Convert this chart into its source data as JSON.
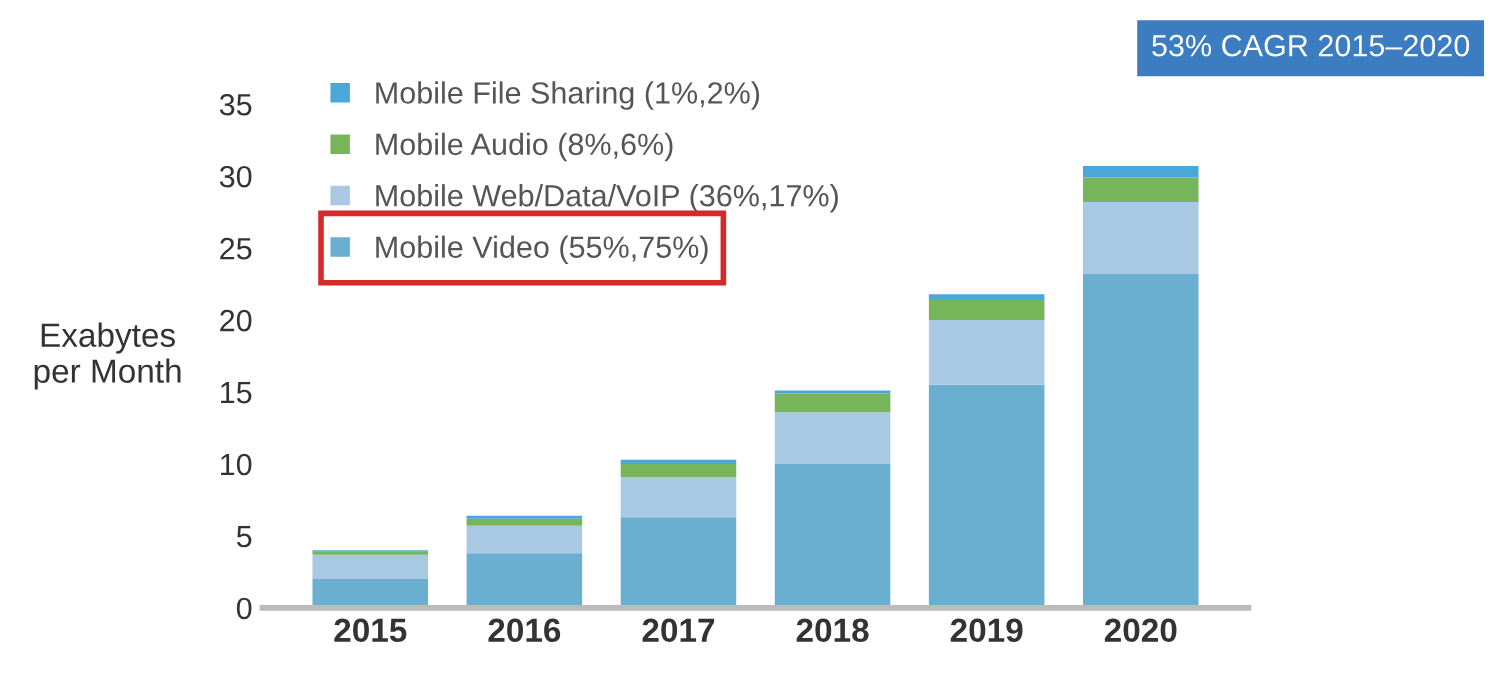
{
  "chart_data": {
    "type": "bar",
    "stacked": true,
    "categories": [
      "2015",
      "2016",
      "2017",
      "2018",
      "2019",
      "2020"
    ],
    "ylabel": "Exabytes\nper Month",
    "series": [
      {
        "name": "Mobile Video (55%,75%)",
        "color": "#6aafd0",
        "values": [
          2.0,
          3.8,
          6.3,
          10.0,
          15.5,
          23.2
        ]
      },
      {
        "name": "Mobile Web/Data/VoIP (36%,17%)",
        "color": "#a8c8e4",
        "values": [
          1.7,
          1.9,
          2.8,
          3.6,
          4.5,
          5.0
        ]
      },
      {
        "name": "Mobile Audio (8%,6%)",
        "color": "#77b55a",
        "values": [
          0.2,
          0.5,
          0.9,
          1.3,
          1.4,
          1.7
        ]
      },
      {
        "name": "Mobile File Sharing (1%,2%)",
        "color": "#4aa8d8",
        "values": [
          0.1,
          0.2,
          0.3,
          0.2,
          0.4,
          0.8
        ]
      }
    ],
    "ylim": [
      0,
      35
    ],
    "yticks": [
      0,
      5,
      10,
      15,
      20,
      25,
      30,
      35
    ],
    "grid": false,
    "legend": "top left",
    "annotations": [
      "53% CAGR 2015–2020"
    ]
  }
}
